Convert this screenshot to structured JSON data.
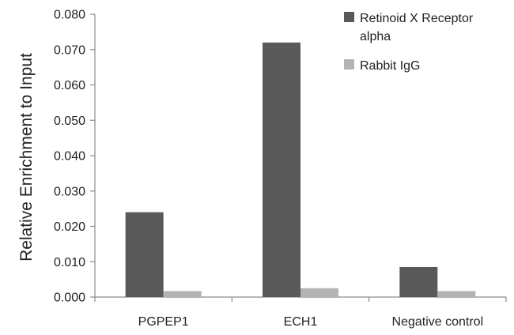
{
  "chart_data": {
    "type": "bar",
    "title": "",
    "xlabel": "",
    "ylabel": "Relative Enrichment to Input",
    "categories": [
      "PGPEP1",
      "ECH1",
      "Negative control"
    ],
    "series": [
      {
        "name": "Retinoid X Receptor alpha",
        "name_lines": [
          "Retinoid X Receptor",
          "alpha"
        ],
        "values": [
          0.024,
          0.072,
          0.0085
        ],
        "color": "#595959"
      },
      {
        "name": "Rabbit IgG",
        "name_lines": [
          "Rabbit IgG"
        ],
        "values": [
          0.0017,
          0.0025,
          0.0017
        ],
        "color": "#b3b3b3"
      }
    ],
    "ylim": [
      0,
      0.08
    ],
    "yticks": [
      "0.000",
      "0.010",
      "0.020",
      "0.030",
      "0.040",
      "0.050",
      "0.060",
      "0.070",
      "0.080"
    ],
    "grid": false,
    "legend_position": "top-right"
  }
}
